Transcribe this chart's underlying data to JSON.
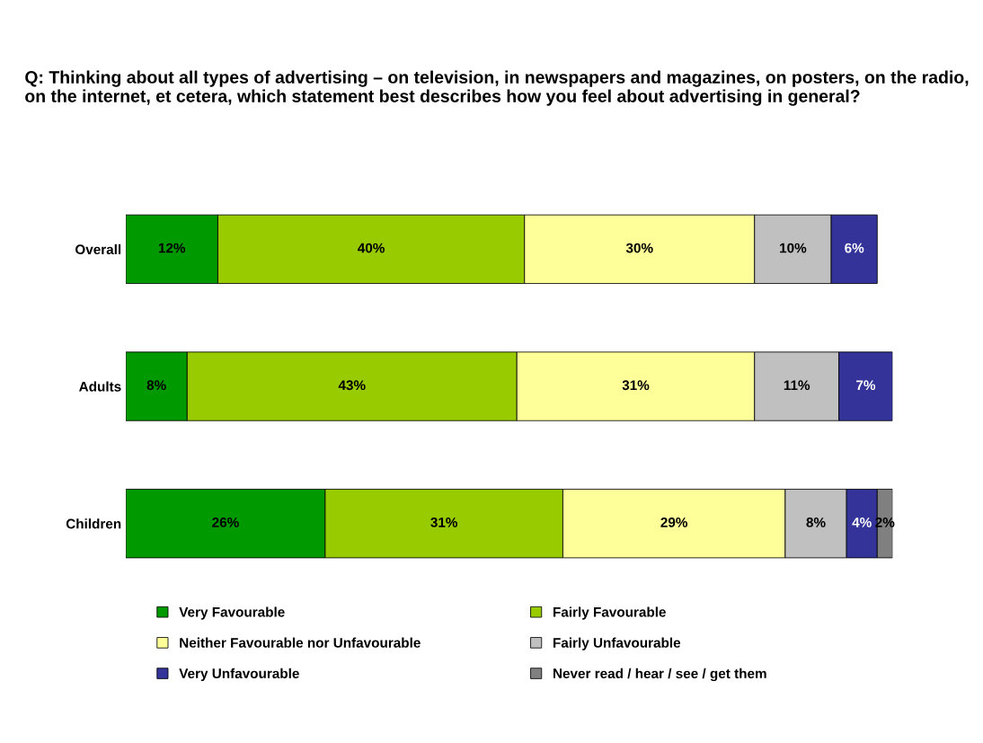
{
  "chart_data": {
    "type": "bar",
    "orientation": "horizontal",
    "stacked": true,
    "legend": "bottom",
    "grid": false,
    "tick_labels": "y",
    "title": "Q: Thinking about all types of advertising – on television, in newspapers and magazines, on posters, on the radio, on the internet, et cetera, which statement best describes how you feel about advertising in general?",
    "categories": [
      "Overall",
      "Adults",
      "Children"
    ],
    "series": [
      {
        "name": "Very Favourable",
        "color": "#009900",
        "values": [
          12,
          8,
          26
        ],
        "value_labels": [
          "12%",
          "8%",
          "26%"
        ]
      },
      {
        "name": "Fairly Favourable",
        "color": "#99cc00",
        "values": [
          40,
          43,
          31
        ],
        "value_labels": [
          "40%",
          "43%",
          "31%"
        ]
      },
      {
        "name": "Neither Favourable nor Unfavourable",
        "color": "#ffff99",
        "values": [
          30,
          31,
          29
        ],
        "value_labels": [
          "30%",
          "31%",
          "29%"
        ]
      },
      {
        "name": "Fairly Unfavourable",
        "color": "#c0c0c0",
        "values": [
          10,
          11,
          8
        ],
        "value_labels": [
          "10%",
          "11%",
          "8%"
        ]
      },
      {
        "name": "Very Unfavourable",
        "color": "#333399",
        "values": [
          6,
          7,
          4
        ],
        "value_labels": [
          "6%",
          "7%",
          "4%"
        ]
      },
      {
        "name": "Never read / hear / see / get them",
        "color": "#808080",
        "values": [
          null,
          null,
          2
        ],
        "value_labels": [
          null,
          null,
          "2%"
        ]
      }
    ]
  }
}
